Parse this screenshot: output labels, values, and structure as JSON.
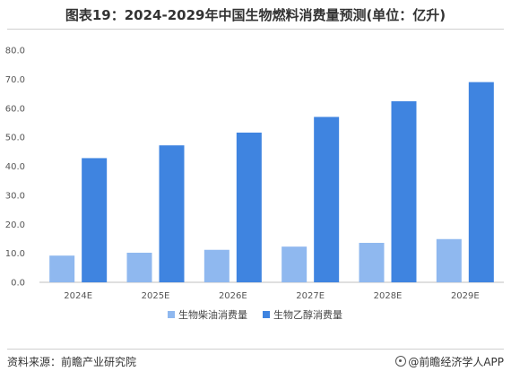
{
  "title": "图表19：2024-2029年中国生物燃料消费量预测(单位：亿升)",
  "footer": {
    "source": "资料来源：前瞻产业研究院",
    "brand": "@前瞻经济学人APP",
    "brand_icon": "watch-icon"
  },
  "chart_data": {
    "type": "bar",
    "categories": [
      "2024E",
      "2025E",
      "2026E",
      "2027E",
      "2028E",
      "2029E"
    ],
    "series": [
      {
        "name": "生物柴油消费量",
        "color": "#8fb8ef",
        "values": [
          9.2,
          10.2,
          11.2,
          12.3,
          13.6,
          14.9
        ]
      },
      {
        "name": "生物乙醇消费量",
        "color": "#3f84e0",
        "values": [
          42.8,
          47.2,
          51.6,
          57.0,
          62.4,
          69.0
        ]
      }
    ],
    "ylim": [
      0,
      80
    ],
    "yticks": [
      "0.0",
      "10.0",
      "20.0",
      "30.0",
      "40.0",
      "50.0",
      "60.0",
      "70.0",
      "80.0"
    ],
    "grid": false,
    "legend": "bottom-center"
  }
}
